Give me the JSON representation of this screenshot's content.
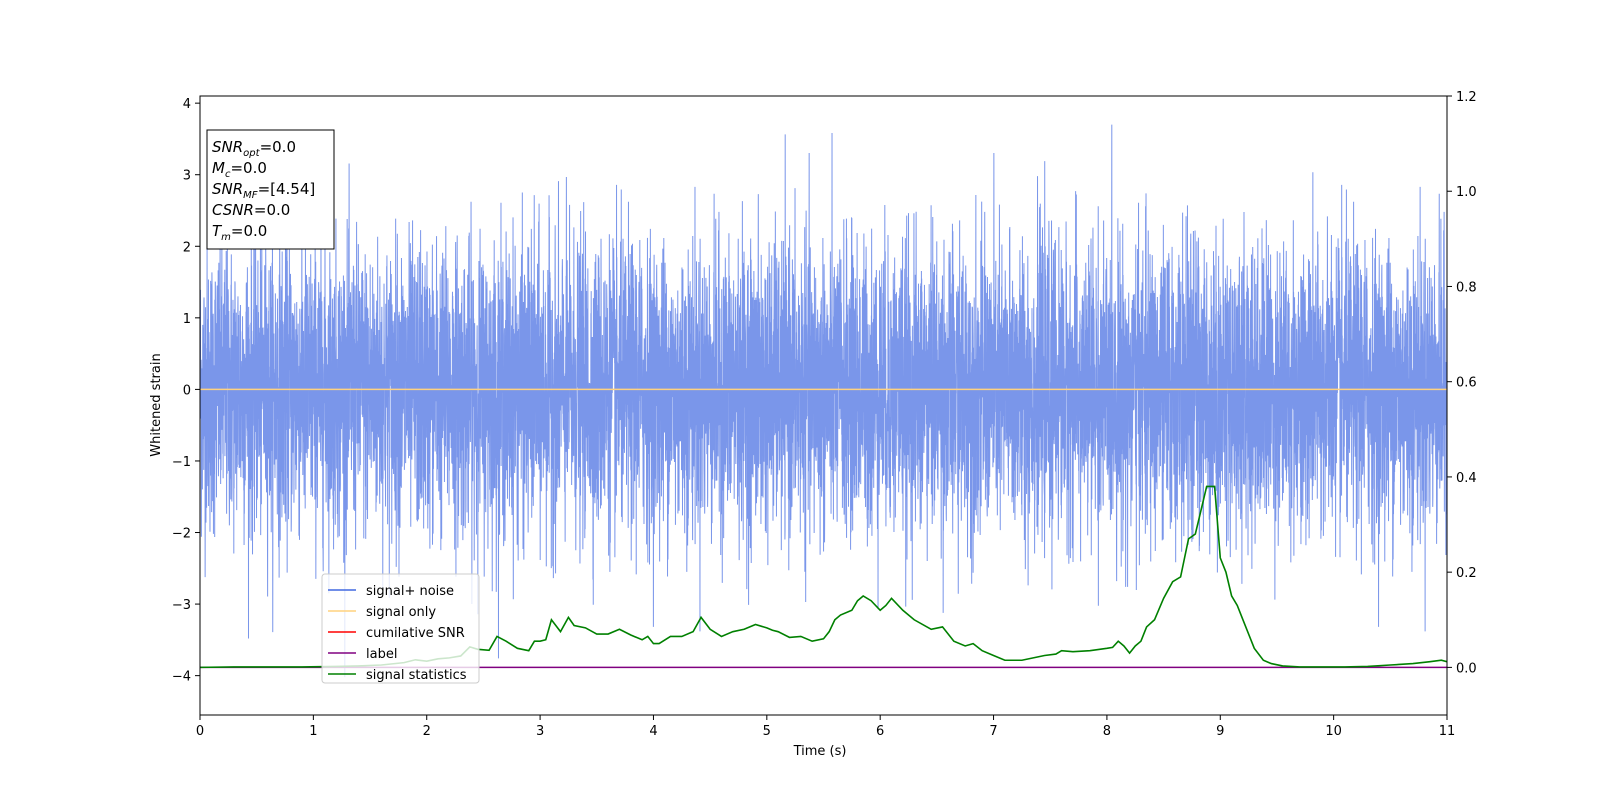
{
  "chart_data": {
    "type": "line",
    "xlabel": "Time (s)",
    "ylabel": "Whitened strain",
    "xlim": [
      0,
      11
    ],
    "ylim": [
      -4.55,
      4.1
    ],
    "y2lim": [
      -0.1,
      1.2
    ],
    "x_ticks": [
      "0",
      "1",
      "2",
      "3",
      "4",
      "5",
      "6",
      "7",
      "8",
      "9",
      "10",
      "11"
    ],
    "y_ticks": [
      "−4",
      "−3",
      "−2",
      "−1",
      "0",
      "1",
      "2",
      "3",
      "4"
    ],
    "y2_ticks": [
      "0.0",
      "0.2",
      "0.4",
      "0.6",
      "0.8",
      "1.0",
      "1.2"
    ],
    "grid": false,
    "legend_position": "lower-left",
    "legend": [
      {
        "name": "signal+ noise",
        "color": "#4169e1"
      },
      {
        "name": "signal only",
        "color": "#ffd27f"
      },
      {
        "name": "cumilative SNR",
        "color": "#ff0000"
      },
      {
        "name": "label",
        "color": "#800080"
      },
      {
        "name": "signal statistics",
        "color": "#008000"
      }
    ],
    "annotation": [
      {
        "base": "SNR",
        "sub": "opt",
        "value": "=0.0"
      },
      {
        "base": "M",
        "sub": "c",
        "value": "=0.0"
      },
      {
        "base": "SNR",
        "sub": "MF",
        "value": "=[4.54]"
      },
      {
        "base": "CSNR",
        "sub": "",
        "value": "=0.0"
      },
      {
        "base": "T",
        "sub": "m",
        "value": "=0.0"
      }
    ],
    "series": [
      {
        "name": "signal+ noise",
        "axis": "left",
        "color": "#4169e1",
        "opacity": 0.7,
        "noise_band": {
          "typical_range": [
            -2.4,
            2.4
          ],
          "extremes": [
            -4.15,
            3.7
          ]
        }
      },
      {
        "name": "signal only",
        "axis": "left",
        "color": "#ffd27f",
        "x": [
          0,
          11
        ],
        "y": [
          0,
          0
        ]
      },
      {
        "name": "label",
        "axis": "right",
        "color": "#800080",
        "x": [
          0,
          11
        ],
        "y": [
          0,
          0
        ]
      },
      {
        "name": "signal statistics",
        "axis": "right",
        "color": "#008000",
        "x": [
          0,
          0.3,
          0.6,
          0.9,
          1.2,
          1.4,
          1.6,
          1.8,
          1.9,
          2.0,
          2.1,
          2.2,
          2.3,
          2.38,
          2.45,
          2.55,
          2.62,
          2.7,
          2.8,
          2.9,
          2.95,
          3.0,
          3.05,
          3.1,
          3.18,
          3.25,
          3.3,
          3.4,
          3.5,
          3.6,
          3.7,
          3.8,
          3.9,
          3.95,
          4.0,
          4.05,
          4.15,
          4.25,
          4.35,
          4.42,
          4.5,
          4.6,
          4.7,
          4.8,
          4.9,
          5.0,
          5.05,
          5.1,
          5.2,
          5.3,
          5.4,
          5.5,
          5.55,
          5.6,
          5.65,
          5.75,
          5.8,
          5.85,
          5.92,
          6.0,
          6.05,
          6.1,
          6.2,
          6.3,
          6.45,
          6.55,
          6.65,
          6.75,
          6.82,
          6.9,
          7.0,
          7.1,
          7.25,
          7.35,
          7.45,
          7.55,
          7.6,
          7.7,
          7.85,
          8.0,
          8.05,
          8.1,
          8.15,
          8.2,
          8.25,
          8.3,
          8.35,
          8.42,
          8.5,
          8.58,
          8.65,
          8.72,
          8.78,
          8.82,
          8.88,
          8.95,
          9.0,
          9.05,
          9.1,
          9.15,
          9.2,
          9.3,
          9.38,
          9.45,
          9.55,
          9.7,
          9.9,
          10.1,
          10.3,
          10.5,
          10.7,
          10.85,
          10.95,
          11.0
        ],
        "y": [
          0.0,
          0.001,
          0.001,
          0.001,
          0.002,
          0.003,
          0.005,
          0.01,
          0.016,
          0.013,
          0.018,
          0.02,
          0.024,
          0.043,
          0.038,
          0.036,
          0.065,
          0.055,
          0.04,
          0.035,
          0.055,
          0.055,
          0.058,
          0.1,
          0.075,
          0.105,
          0.088,
          0.083,
          0.07,
          0.07,
          0.08,
          0.068,
          0.058,
          0.065,
          0.05,
          0.05,
          0.065,
          0.065,
          0.075,
          0.105,
          0.08,
          0.065,
          0.075,
          0.08,
          0.09,
          0.083,
          0.078,
          0.075,
          0.063,
          0.065,
          0.055,
          0.06,
          0.075,
          0.1,
          0.11,
          0.12,
          0.14,
          0.15,
          0.14,
          0.12,
          0.13,
          0.145,
          0.12,
          0.1,
          0.08,
          0.085,
          0.055,
          0.045,
          0.05,
          0.035,
          0.025,
          0.015,
          0.015,
          0.02,
          0.025,
          0.028,
          0.035,
          0.033,
          0.035,
          0.04,
          0.042,
          0.055,
          0.045,
          0.03,
          0.045,
          0.055,
          0.085,
          0.1,
          0.145,
          0.18,
          0.19,
          0.27,
          0.28,
          0.32,
          0.38,
          0.38,
          0.23,
          0.2,
          0.15,
          0.13,
          0.1,
          0.04,
          0.015,
          0.008,
          0.003,
          0.001,
          0.001,
          0.001,
          0.002,
          0.005,
          0.008,
          0.012,
          0.015,
          0.012
        ]
      }
    ]
  }
}
